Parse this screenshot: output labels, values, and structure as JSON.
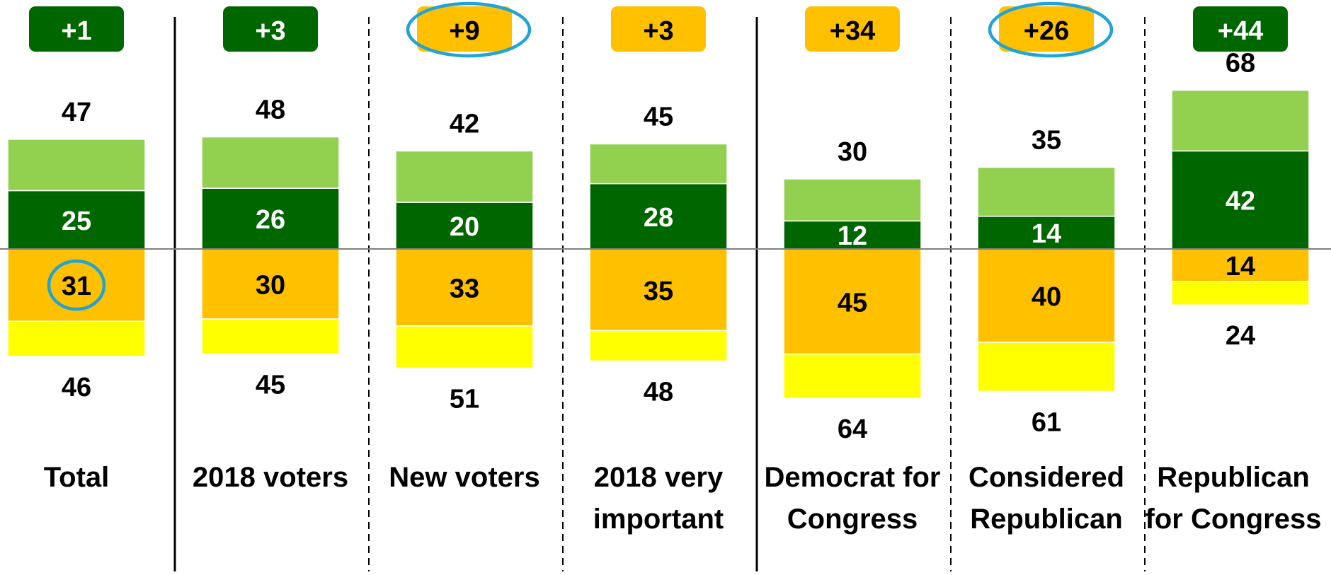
{
  "chart_data": {
    "type": "bar",
    "subtype": "diverging-stacked-bar",
    "categories": [
      [
        "Total"
      ],
      [
        "2018 voters"
      ],
      [
        "New voters"
      ],
      [
        "2018 very",
        "important"
      ],
      [
        "Democrat for",
        "Congress"
      ],
      [
        "Considered",
        "Republican"
      ],
      [
        "Republican",
        "for Congress"
      ]
    ],
    "net_labels": [
      "+1",
      "+3",
      "+9",
      "+3",
      "+34",
      "+26",
      "+44"
    ],
    "net_favors": [
      "positive",
      "positive",
      "negative",
      "negative",
      "negative",
      "negative",
      "positive"
    ],
    "positive_totals": [
      47,
      48,
      42,
      45,
      30,
      35,
      68
    ],
    "negative_totals": [
      46,
      45,
      51,
      48,
      64,
      61,
      24
    ],
    "series": [
      {
        "values": [
          22,
          22,
          22,
          17,
          18,
          21,
          26
        ],
        "color": "#92d050",
        "side": "positive",
        "labeled": false
      },
      {
        "values": [
          25,
          26,
          20,
          28,
          12,
          14,
          42
        ],
        "color": "#006600",
        "side": "positive",
        "labeled": true
      },
      {
        "values": [
          31,
          30,
          33,
          35,
          45,
          40,
          14
        ],
        "color": "#ffc000",
        "side": "negative",
        "labeled": true
      },
      {
        "values": [
          15,
          15,
          18,
          13,
          19,
          21,
          10
        ],
        "color": "#ffff00",
        "side": "negative",
        "labeled": false
      }
    ],
    "highlights": [
      {
        "group": 0,
        "target": "series-2-label"
      },
      {
        "group": 2,
        "target": "net-badge"
      },
      {
        "group": 5,
        "target": "net-badge"
      }
    ],
    "separators": [
      "solid",
      "dashed",
      "dashed",
      "solid",
      "dashed",
      "dashed"
    ],
    "baseline": 0,
    "grid": false,
    "legend": "none",
    "colors": {
      "net_positive_badge": "#006600",
      "net_negative_badge": "#ffc000",
      "highlight_ring": "#1fa3d9",
      "baseline": "#808080",
      "separator": "#000000"
    }
  }
}
